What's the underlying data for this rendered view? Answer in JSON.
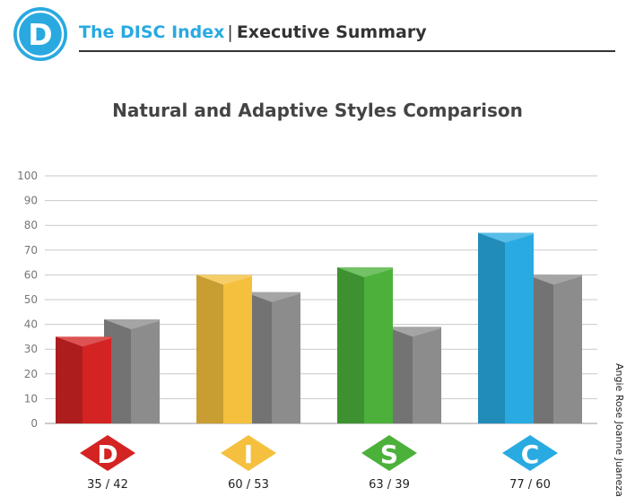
{
  "header": {
    "logo_letter": "D",
    "brand": "The DISC Index",
    "separator": "|",
    "subtitle": "Executive Summary"
  },
  "credit": "Angie Rose Joanne Juaneza",
  "chart_data": {
    "type": "bar",
    "title": "Natural and Adaptive Styles Comparison",
    "categories": [
      "D",
      "I",
      "S",
      "C"
    ],
    "series": [
      {
        "values": [
          35,
          60,
          63,
          77
        ]
      },
      {
        "values": [
          42,
          53,
          39,
          60
        ]
      }
    ],
    "value_labels": [
      "35 / 42",
      "60 / 53",
      "63 / 39",
      "77 / 60"
    ],
    "ylim": [
      0,
      100
    ],
    "yticks": [
      0,
      10,
      20,
      30,
      40,
      50,
      60,
      70,
      80,
      90,
      100
    ],
    "grid": true,
    "colors": {
      "D": "#d42323",
      "I": "#f4c03d",
      "S": "#4cb13b",
      "C": "#29abe2",
      "secondary": "#8c8c8c",
      "logo": "#29a9e0"
    }
  }
}
